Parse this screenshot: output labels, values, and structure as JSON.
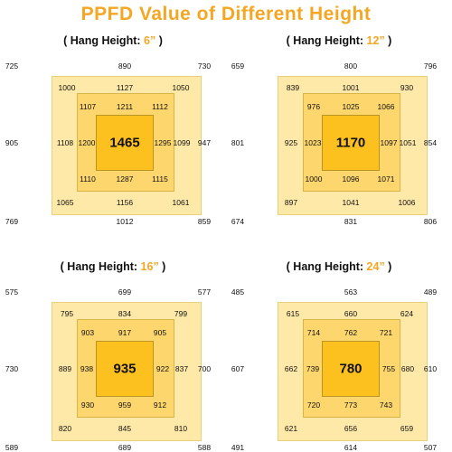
{
  "title": "PPFD Value of Different Height",
  "panels": [
    {
      "hang_label": "( Hang Height: ",
      "hang_value": "6”",
      "hang_close": " )",
      "corners": [
        "725",
        "730",
        "769",
        "859"
      ],
      "edges": {
        "top": "890",
        "bottom": "1012",
        "left": "905",
        "right": "947"
      },
      "outer": [
        "1000",
        "1127",
        "1050",
        "1108",
        "1099",
        "1065",
        "1156",
        "1061"
      ],
      "mid": [
        "1107",
        "1211",
        "1112",
        "1200",
        "1295",
        "1110",
        "1287",
        "1115"
      ],
      "center": "1465"
    },
    {
      "hang_label": "( Hang Height: ",
      "hang_value": "12”",
      "hang_close": " )",
      "corners": [
        "659",
        "796",
        "674",
        "806"
      ],
      "edges": {
        "top": "800",
        "bottom": "831",
        "left": "801",
        "right": "854"
      },
      "outer": [
        "839",
        "1001",
        "930",
        "925",
        "1051",
        "897",
        "1041",
        "1006"
      ],
      "mid": [
        "976",
        "1025",
        "1066",
        "1023",
        "1097",
        "1000",
        "1096",
        "1071"
      ],
      "center": "1170"
    },
    {
      "hang_label": "( Hang Height: ",
      "hang_value": "16”",
      "hang_close": " )",
      "corners": [
        "575",
        "577",
        "589",
        "588"
      ],
      "edges": {
        "top": "699",
        "bottom": "689",
        "left": "730",
        "right": "700"
      },
      "outer": [
        "795",
        "834",
        "799",
        "889",
        "837",
        "820",
        "845",
        "810"
      ],
      "mid": [
        "903",
        "917",
        "905",
        "938",
        "922",
        "930",
        "959",
        "912"
      ],
      "center": "935"
    },
    {
      "hang_label": "( Hang Height: ",
      "hang_value": "24”",
      "hang_close": " )",
      "corners": [
        "485",
        "489",
        "491",
        "507"
      ],
      "edges": {
        "top": "563",
        "bottom": "614",
        "left": "607",
        "right": "610"
      },
      "outer": [
        "615",
        "660",
        "624",
        "662",
        "680",
        "621",
        "656",
        "659"
      ],
      "mid": [
        "714",
        "762",
        "721",
        "739",
        "755",
        "720",
        "773",
        "743"
      ],
      "center": "780"
    }
  ]
}
